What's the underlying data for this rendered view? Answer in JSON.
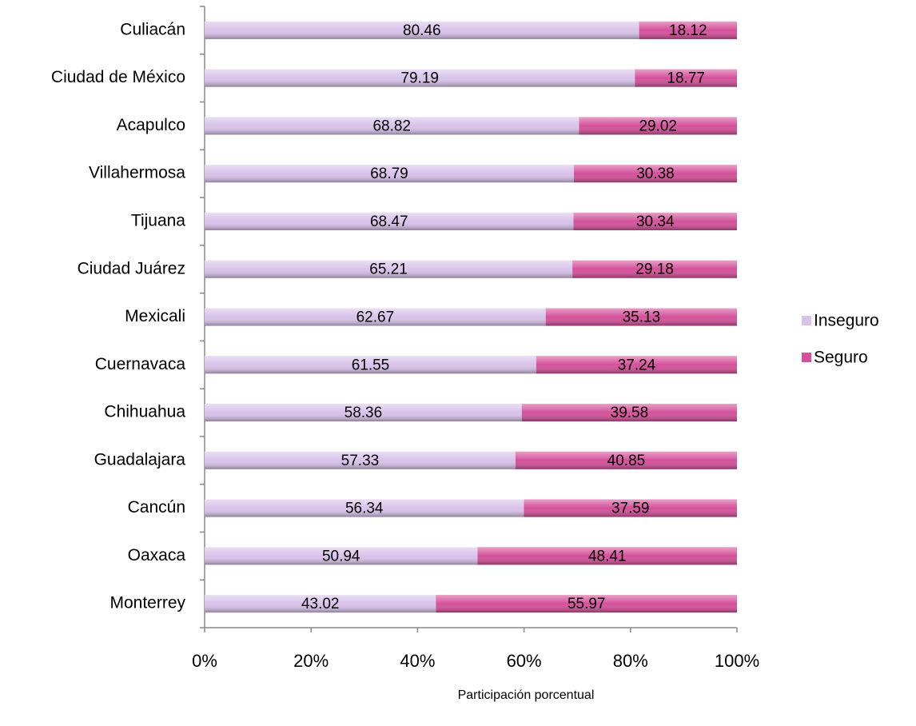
{
  "chart_data": {
    "type": "bar",
    "orientation": "horizontal",
    "stacking": "percent",
    "categories": [
      "Culiacán",
      "Ciudad de México",
      "Acapulco",
      "Villahermosa",
      "Tijuana",
      "Ciudad Juárez",
      "Mexicali",
      "Cuernavaca",
      "Chihuahua",
      "Guadalajara",
      "Cancún",
      "Oaxaca",
      "Monterrey"
    ],
    "series": [
      {
        "name": "Inseguro",
        "color": "#d8c2ea",
        "values": [
          80.46,
          79.19,
          68.82,
          68.79,
          68.47,
          65.21,
          62.67,
          61.55,
          58.36,
          57.33,
          56.34,
          50.94,
          43.02
        ]
      },
      {
        "name": "Seguro",
        "color": "#d4509a",
        "values": [
          18.12,
          18.77,
          29.02,
          30.38,
          30.34,
          29.18,
          35.13,
          37.24,
          39.58,
          40.85,
          37.59,
          48.41,
          55.97
        ]
      }
    ],
    "xlabel": "Participación porcentual",
    "xlim": [
      0,
      100
    ],
    "xticks": [
      {
        "value": 0,
        "label": "0%"
      },
      {
        "value": 20,
        "label": "20%"
      },
      {
        "value": 40,
        "label": "40%"
      },
      {
        "value": 60,
        "label": "60%"
      },
      {
        "value": 80,
        "label": "80%"
      },
      {
        "value": 100,
        "label": "100%"
      }
    ],
    "legend": "right"
  }
}
